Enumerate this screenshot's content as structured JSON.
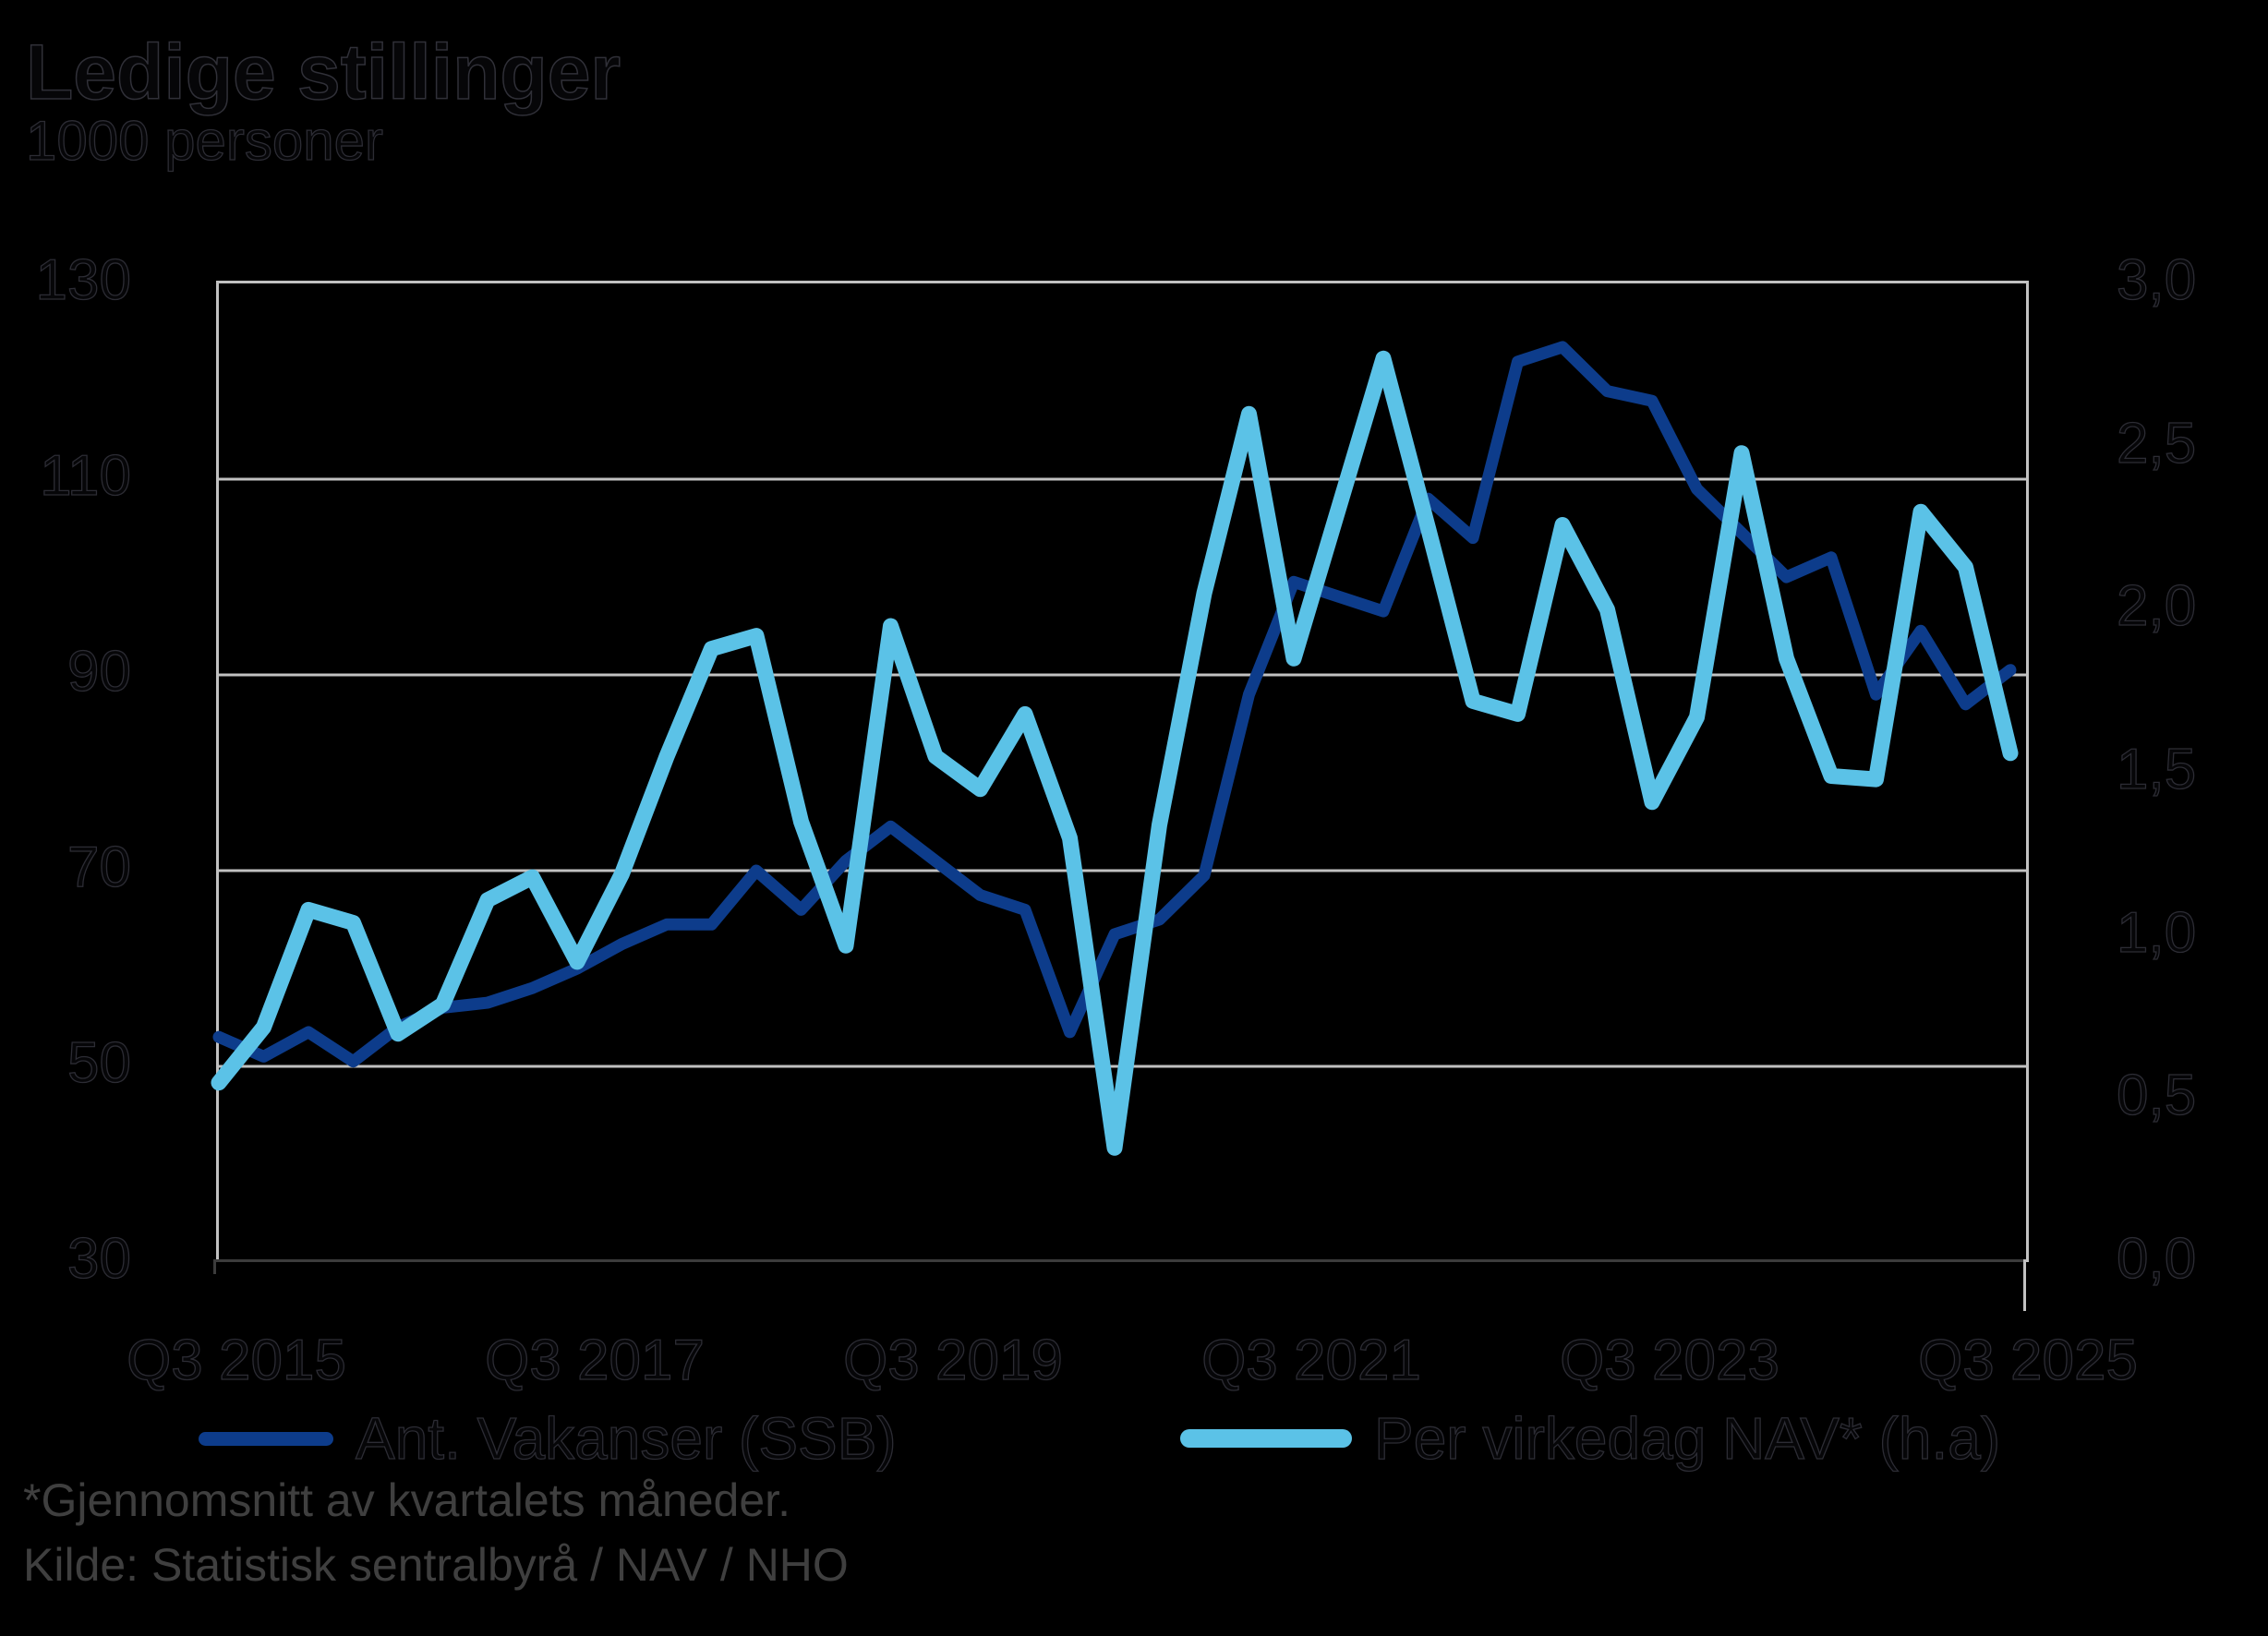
{
  "title": "Ledige stillinger",
  "subtitle": "1000 personer",
  "footnotes": {
    "line1": "*Gjennomsnitt av kvartalets måneder.",
    "line2": "Kilde: Statistisk sentralbyrå / NAV / NHO"
  },
  "colors": {
    "background": "#000000",
    "gridline": "#c1c1c1",
    "bottom_axis": "#3c3c3c",
    "series_ssb": "#0d3c8b",
    "series_nav": "#5bc2e7",
    "footnote_text": "#3f3f3f"
  },
  "legend": {
    "items": [
      {
        "label": "Ant. Vakanser (SSB)",
        "color": "#0d3c8b"
      },
      {
        "label": "Per virkedag NAV* (h.a)",
        "color": "#5bc2e7"
      }
    ]
  },
  "chart_data": {
    "type": "line",
    "title": "Ledige stillinger",
    "ylabel_left": "1000 personer",
    "frequency": "quarterly",
    "x_tick_labels": [
      "Q3 2015",
      "Q3 2017",
      "Q3 2019",
      "Q3 2021",
      "Q3 2023",
      "Q3 2025"
    ],
    "left_axis": {
      "min": 30,
      "max": 130,
      "ticks": [
        "130",
        "110",
        "90",
        "70",
        "50",
        "30"
      ]
    },
    "right_axis": {
      "min": 0.0,
      "max": 3.0,
      "ticks": [
        "3,0",
        "2,5",
        "2,0",
        "1,5",
        "1,0",
        "0,5",
        "0,0"
      ]
    },
    "grid": "horizontal",
    "legend_position": "bottom",
    "quarters": [
      "Q3 2015",
      "Q4 2015",
      "Q1 2016",
      "Q2 2016",
      "Q3 2016",
      "Q4 2016",
      "Q1 2017",
      "Q2 2017",
      "Q3 2017",
      "Q4 2017",
      "Q1 2018",
      "Q2 2018",
      "Q3 2018",
      "Q4 2018",
      "Q1 2019",
      "Q2 2019",
      "Q3 2019",
      "Q4 2019",
      "Q1 2020",
      "Q2 2020",
      "Q3 2020",
      "Q4 2020",
      "Q1 2021",
      "Q2 2021",
      "Q3 2021",
      "Q4 2021",
      "Q1 2022",
      "Q2 2022",
      "Q3 2022",
      "Q4 2022",
      "Q1 2023",
      "Q2 2023",
      "Q3 2023",
      "Q4 2023",
      "Q1 2024",
      "Q2 2024",
      "Q3 2024",
      "Q4 2024",
      "Q1 2025",
      "Q2 2025",
      "Q3 2025"
    ],
    "series": [
      {
        "name": "Ant. Vakanser (SSB)",
        "axis": "left",
        "color": "#0d3c8b",
        "stroke_width": 13,
        "values": [
          53,
          51,
          53.5,
          50.5,
          54,
          56,
          56.5,
          58,
          60,
          62.5,
          64.5,
          64.5,
          70,
          66,
          71,
          74.5,
          71,
          67.5,
          66,
          53.5,
          63.5,
          65,
          69.5,
          88,
          99.5,
          98,
          96.5,
          108,
          104,
          122,
          123.5,
          119,
          118,
          109,
          104.5,
          100,
          102,
          88,
          94.5,
          87,
          90.5
        ]
      },
      {
        "name": "Per virkedag NAV* (h.a)",
        "axis": "right",
        "color": "#5bc2e7",
        "stroke_width": 17,
        "values": [
          0.55,
          0.72,
          1.08,
          1.04,
          0.7,
          0.79,
          1.11,
          1.18,
          0.92,
          1.19,
          1.55,
          1.88,
          1.92,
          1.35,
          0.97,
          1.95,
          1.55,
          1.45,
          1.68,
          1.3,
          0.35,
          1.34,
          2.05,
          2.6,
          1.85,
          2.31,
          2.77,
          2.25,
          1.72,
          1.68,
          2.26,
          2.0,
          1.41,
          1.67,
          2.48,
          1.85,
          1.49,
          1.48,
          2.3,
          2.13,
          1.56
        ]
      }
    ]
  }
}
